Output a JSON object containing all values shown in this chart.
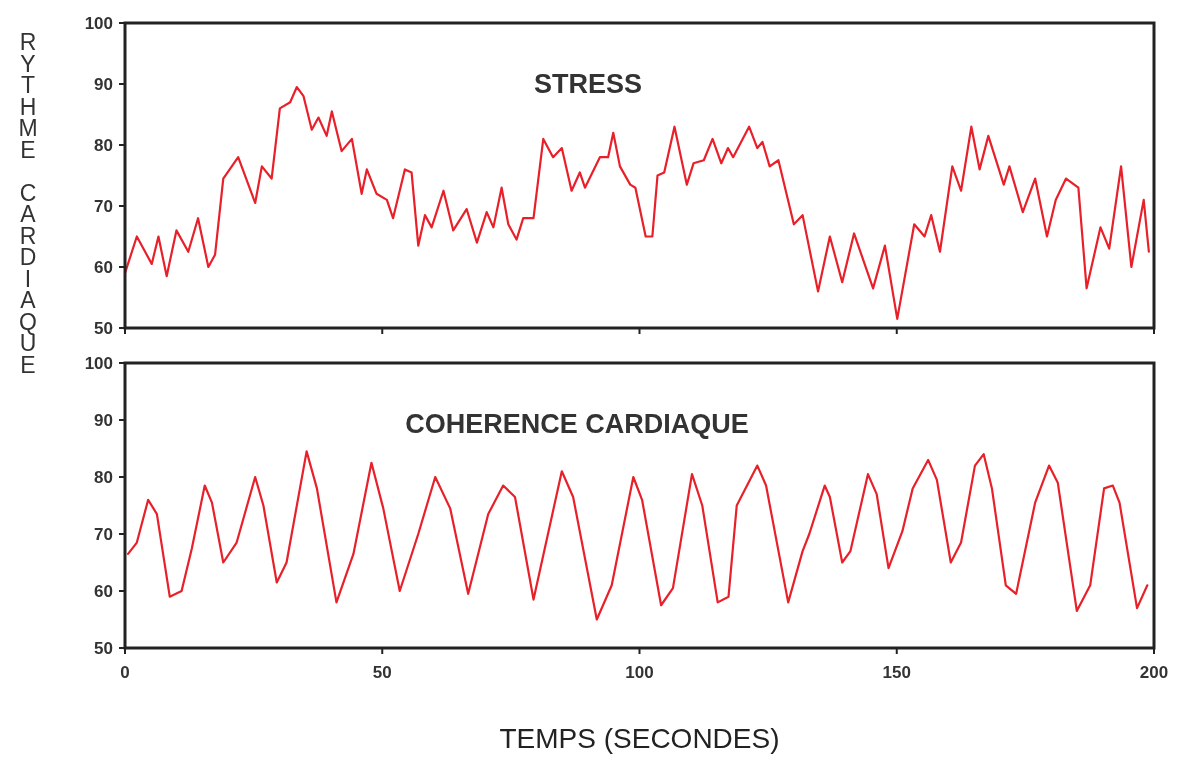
{
  "chart_data": [
    {
      "type": "line",
      "title": "STRESS",
      "ylabel": "RYTHME CARDIAQUE",
      "color": "#e8202a",
      "xlim": [
        0,
        200
      ],
      "xticks": [
        0,
        50,
        100,
        150,
        200
      ],
      "ylim": [
        50,
        100
      ],
      "yticks": [
        50,
        60,
        70,
        80,
        90,
        100
      ],
      "tick_labels": "y",
      "x": [
        0,
        2.3,
        5.2,
        6.5,
        8.1,
        10,
        12.3,
        14.2,
        16.2,
        17.5,
        19.1,
        22,
        25.3,
        26.6,
        28.5,
        30.1,
        32.1,
        33.4,
        34.7,
        36.3,
        37.6,
        39.2,
        40.2,
        42.1,
        44.1,
        46,
        47,
        48.9,
        50.9,
        52.1,
        54.4,
        55.7,
        57,
        58.3,
        59.6,
        61.9,
        63.8,
        66.4,
        68.4,
        70.3,
        71.6,
        73.2,
        74.5,
        76.1,
        77.4,
        79.4,
        81.3,
        83.2,
        84.9,
        86.8,
        88.4,
        89.4,
        92.3,
        93.9,
        94.9,
        96.2,
        98.2,
        99.2,
        101.2,
        102.5,
        103.5,
        104.8,
        106.8,
        109.2,
        110.5,
        112.5,
        114.2,
        115.9,
        117.2,
        118.2,
        121.3,
        122.9,
        123.9,
        125.3,
        127,
        130,
        131.7,
        134.7,
        137,
        139.4,
        141.7,
        145.4,
        147.7,
        150.1,
        153.4,
        155.4,
        156.7,
        158.4,
        160.8,
        162.5,
        164.5,
        166.1,
        167.8,
        170.8,
        171.9,
        174.5,
        176.9,
        179.2,
        180.9,
        182.9,
        185.3,
        186.9,
        189.6,
        191.3,
        193.6,
        195.6,
        198,
        199
      ],
      "values": [
        59,
        65,
        60.5,
        65,
        58.5,
        66,
        62.5,
        68,
        60,
        62,
        74.5,
        78,
        70.5,
        76.5,
        74.5,
        86,
        87,
        89.5,
        88,
        82.5,
        84.5,
        81.5,
        85.5,
        79,
        81,
        72,
        76,
        72,
        71,
        68,
        76,
        75.5,
        63.5,
        68.5,
        66.5,
        72.5,
        66,
        69.5,
        64,
        69,
        66.5,
        73,
        67,
        64.5,
        68,
        68,
        81,
        78,
        79.5,
        72.5,
        75.5,
        73,
        78,
        78,
        82,
        76.5,
        73.5,
        73,
        65,
        65,
        75,
        75.5,
        83,
        73.5,
        77,
        77.5,
        81,
        77,
        79.5,
        78,
        83,
        79.5,
        80.5,
        76.5,
        77.5,
        67,
        68.5,
        56,
        65,
        57.5,
        65.5,
        56.5,
        63.5,
        51.5,
        67,
        65,
        68.5,
        62.5,
        76.5,
        72.5,
        83,
        76,
        81.5,
        73.5,
        76.5,
        69,
        74.5,
        65,
        71,
        74.5,
        73,
        56.5,
        66.5,
        63,
        76.5,
        60,
        71,
        62.5
      ]
    },
    {
      "type": "line",
      "title": "COHERENCE CARDIAQUE",
      "xlabel": "TEMPS (SECONDES)",
      "color": "#e8202a",
      "xlim": [
        0,
        200
      ],
      "xticks": [
        0,
        50,
        100,
        150,
        200
      ],
      "ylim": [
        50,
        100
      ],
      "yticks": [
        50,
        60,
        70,
        80,
        90,
        100
      ],
      "x": [
        0.6,
        2.3,
        4.5,
        6.2,
        8.7,
        11,
        13,
        15.5,
        16.9,
        19.1,
        21.7,
        25.3,
        26.9,
        29.5,
        31.4,
        35.3,
        37.3,
        41.1,
        44.4,
        47.9,
        50.2,
        53.4,
        57,
        60.3,
        63.2,
        66.7,
        70.6,
        73.5,
        75.8,
        79.4,
        84.9,
        87.1,
        91.7,
        94.6,
        98.8,
        100.5,
        104.2,
        106.5,
        110.2,
        112.2,
        115.2,
        117.3,
        118.9,
        122.9,
        124.6,
        128.9,
        131.7,
        133,
        136,
        137,
        139.4,
        141,
        144.4,
        146.1,
        148.4,
        151.1,
        153.1,
        156.1,
        157.8,
        160.5,
        162.5,
        165.2,
        166.9,
        168.5,
        171.2,
        173.2,
        176.9,
        179.6,
        181.3,
        185,
        187.6,
        190.3,
        192,
        193.3,
        196.7,
        198.7
      ],
      "values": [
        66.5,
        68.5,
        76,
        73.5,
        59,
        60,
        67.5,
        78.5,
        75.5,
        65,
        68.5,
        80,
        75,
        61.5,
        65,
        84.5,
        78,
        58,
        66.5,
        82.5,
        74.5,
        60,
        70,
        80,
        74.5,
        59.5,
        73.5,
        78.5,
        76.5,
        58.5,
        81,
        76.5,
        55,
        61,
        80,
        76,
        57.5,
        60.5,
        80.5,
        75,
        58,
        59,
        75,
        82,
        78.5,
        58,
        67,
        70,
        78.5,
        76.5,
        65,
        67,
        80.5,
        77,
        64,
        70.5,
        78,
        83,
        79.5,
        65,
        68.5,
        82,
        84,
        78,
        61,
        59.5,
        75.5,
        82,
        79,
        56.5,
        61,
        78,
        78.5,
        75.5,
        57,
        61
      ]
    }
  ]
}
